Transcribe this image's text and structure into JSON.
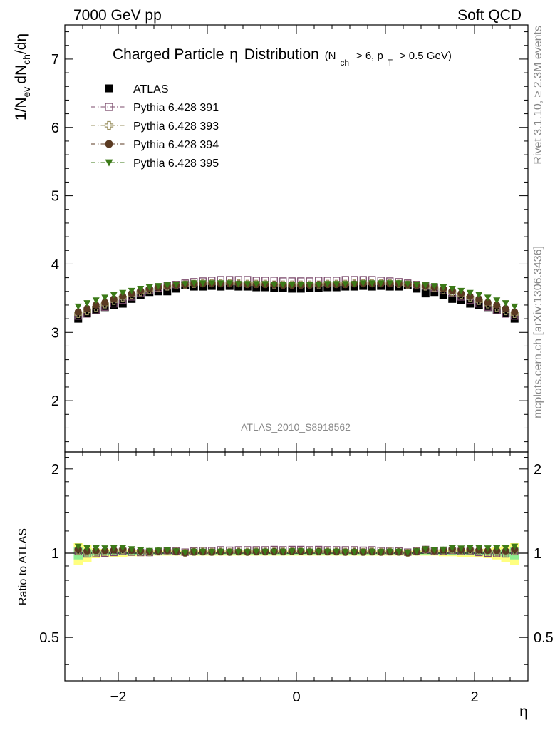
{
  "header": {
    "left": "7000 GeV pp",
    "right": "Soft QCD"
  },
  "side_labels": {
    "rivet": "Rivet 3.1.10, ≥ 2.3M events",
    "mcplots": "mcplots.cern.ch [arXiv:1306.3436]"
  },
  "colors": {
    "atlas": "#000000",
    "p391": "#7b4a6b",
    "p393": "#9a9060",
    "p394": "#5a3a22",
    "p395": "#3c7a18",
    "band_yellow": "#ffff80",
    "band_green": "#90ee90"
  },
  "chart_data": [
    {
      "type": "scatter",
      "title": "Charged Particle η Distribution",
      "title_parts": {
        "main": "Charged Particle",
        "eta": "η",
        "dist": "Distribution",
        "cut_open": "(N",
        "cut_sub1": "ch",
        "cut_mid": "> 6, p",
        "cut_sub2": "T",
        "cut_close": "> 0.5 GeV)"
      },
      "ylabel": "1/N_ev dN_ch/dη",
      "ylabel_parts": {
        "a": "1/N",
        "a_sub": "ev",
        "b": "dN",
        "b_sub": "ch",
        "c": "/dη"
      },
      "xlim": [
        -2.6,
        2.6
      ],
      "ylim": [
        1.25,
        7.5
      ],
      "y_ticks": [
        2,
        3,
        4,
        5,
        6,
        7
      ],
      "y_tick_labels": [
        "2",
        "3",
        "4",
        "5",
        "6",
        "7"
      ],
      "legend_position": "top-left",
      "watermark": "ATLAS_2010_S8918562",
      "x": [
        -2.45,
        -2.35,
        -2.25,
        -2.15,
        -2.05,
        -1.95,
        -1.85,
        -1.75,
        -1.65,
        -1.55,
        -1.45,
        -1.35,
        -1.25,
        -1.15,
        -1.05,
        -0.95,
        -0.85,
        -0.75,
        -0.65,
        -0.55,
        -0.45,
        -0.35,
        -0.25,
        -0.15,
        -0.05,
        0.05,
        0.15,
        0.25,
        0.35,
        0.45,
        0.55,
        0.65,
        0.75,
        0.85,
        0.95,
        1.05,
        1.15,
        1.25,
        1.35,
        1.45,
        1.55,
        1.65,
        1.75,
        1.85,
        1.95,
        2.05,
        2.15,
        2.25,
        2.35,
        2.45
      ],
      "series": [
        {
          "name": "ATLAS",
          "marker": "filled-square",
          "values": [
            3.2,
            3.29,
            3.33,
            3.37,
            3.4,
            3.42,
            3.49,
            3.55,
            3.59,
            3.6,
            3.6,
            3.64,
            3.69,
            3.67,
            3.67,
            3.68,
            3.67,
            3.68,
            3.67,
            3.67,
            3.66,
            3.66,
            3.65,
            3.65,
            3.64,
            3.64,
            3.65,
            3.65,
            3.66,
            3.66,
            3.67,
            3.67,
            3.68,
            3.67,
            3.68,
            3.67,
            3.67,
            3.69,
            3.64,
            3.57,
            3.59,
            3.55,
            3.49,
            3.47,
            3.42,
            3.4,
            3.37,
            3.33,
            3.29,
            3.2
          ]
        },
        {
          "name": "Pythia 6.428 391",
          "marker": "open-square",
          "values": [
            3.24,
            3.27,
            3.32,
            3.37,
            3.42,
            3.47,
            3.52,
            3.57,
            3.61,
            3.65,
            3.68,
            3.7,
            3.72,
            3.74,
            3.75,
            3.76,
            3.77,
            3.77,
            3.77,
            3.77,
            3.76,
            3.76,
            3.76,
            3.75,
            3.75,
            3.75,
            3.75,
            3.76,
            3.76,
            3.76,
            3.77,
            3.77,
            3.77,
            3.77,
            3.76,
            3.75,
            3.74,
            3.72,
            3.7,
            3.68,
            3.65,
            3.61,
            3.57,
            3.52,
            3.47,
            3.42,
            3.37,
            3.32,
            3.27,
            3.24
          ]
        },
        {
          "name": "Pythia 6.428 393",
          "marker": "open-cross",
          "values": [
            3.27,
            3.31,
            3.36,
            3.41,
            3.46,
            3.51,
            3.55,
            3.59,
            3.62,
            3.65,
            3.67,
            3.69,
            3.7,
            3.71,
            3.72,
            3.72,
            3.72,
            3.72,
            3.72,
            3.71,
            3.71,
            3.71,
            3.7,
            3.7,
            3.7,
            3.7,
            3.7,
            3.7,
            3.71,
            3.71,
            3.71,
            3.72,
            3.72,
            3.72,
            3.72,
            3.72,
            3.71,
            3.7,
            3.69,
            3.67,
            3.65,
            3.62,
            3.59,
            3.55,
            3.51,
            3.46,
            3.41,
            3.36,
            3.31,
            3.27
          ]
        },
        {
          "name": "Pythia 6.428 394",
          "marker": "filled-circle",
          "values": [
            3.3,
            3.35,
            3.4,
            3.44,
            3.49,
            3.53,
            3.57,
            3.61,
            3.64,
            3.66,
            3.68,
            3.69,
            3.7,
            3.71,
            3.71,
            3.71,
            3.71,
            3.71,
            3.71,
            3.7,
            3.7,
            3.7,
            3.7,
            3.69,
            3.69,
            3.69,
            3.69,
            3.7,
            3.7,
            3.7,
            3.7,
            3.71,
            3.71,
            3.71,
            3.71,
            3.71,
            3.71,
            3.7,
            3.69,
            3.68,
            3.66,
            3.64,
            3.61,
            3.57,
            3.53,
            3.49,
            3.44,
            3.4,
            3.35,
            3.3
          ]
        },
        {
          "name": "Pythia 6.428 395",
          "marker": "filled-triangle-down",
          "values": [
            3.38,
            3.43,
            3.47,
            3.51,
            3.55,
            3.58,
            3.61,
            3.64,
            3.66,
            3.68,
            3.69,
            3.7,
            3.71,
            3.72,
            3.72,
            3.72,
            3.72,
            3.72,
            3.71,
            3.71,
            3.71,
            3.71,
            3.7,
            3.7,
            3.7,
            3.7,
            3.7,
            3.7,
            3.71,
            3.71,
            3.71,
            3.71,
            3.72,
            3.72,
            3.72,
            3.72,
            3.72,
            3.71,
            3.7,
            3.69,
            3.68,
            3.66,
            3.64,
            3.61,
            3.58,
            3.55,
            3.51,
            3.47,
            3.43,
            3.38
          ]
        }
      ]
    },
    {
      "type": "scatter",
      "ylabel": "Ratio to ATLAS",
      "xlabel": "η",
      "xlim": [
        -2.6,
        2.6
      ],
      "ylim": [
        0.35,
        2.3
      ],
      "y_ticks": [
        0.5,
        1,
        2
      ],
      "y_tick_labels": [
        "0.5",
        "1",
        "2"
      ],
      "x_ticks": [
        -2,
        0,
        2
      ],
      "x_tick_labels": [
        "−2",
        "0",
        "2"
      ],
      "reference_line": 1,
      "band_yellow_halfwidth": [
        0.09,
        0.07,
        0.04,
        0.035,
        0.03,
        0.03,
        0.025,
        0.025,
        0.02,
        0.02,
        0.02,
        0.02,
        0.02,
        0.02,
        0.02,
        0.02,
        0.02,
        0.02,
        0.02,
        0.02,
        0.02,
        0.02,
        0.02,
        0.02,
        0.02,
        0.02,
        0.02,
        0.02,
        0.02,
        0.02,
        0.02,
        0.02,
        0.02,
        0.02,
        0.02,
        0.02,
        0.02,
        0.02,
        0.02,
        0.02,
        0.02,
        0.025,
        0.025,
        0.03,
        0.03,
        0.035,
        0.04,
        0.05,
        0.07,
        0.09
      ],
      "band_green_halfwidth": [
        0.05,
        0.035,
        0.02,
        0.018,
        0.016,
        0.015,
        0.013,
        0.012,
        0.011,
        0.01,
        0.01,
        0.01,
        0.01,
        0.01,
        0.01,
        0.01,
        0.01,
        0.01,
        0.01,
        0.01,
        0.01,
        0.01,
        0.01,
        0.01,
        0.01,
        0.01,
        0.01,
        0.01,
        0.01,
        0.01,
        0.01,
        0.01,
        0.01,
        0.01,
        0.01,
        0.01,
        0.01,
        0.01,
        0.01,
        0.01,
        0.01,
        0.011,
        0.012,
        0.013,
        0.015,
        0.016,
        0.018,
        0.02,
        0.035,
        0.05
      ]
    }
  ]
}
